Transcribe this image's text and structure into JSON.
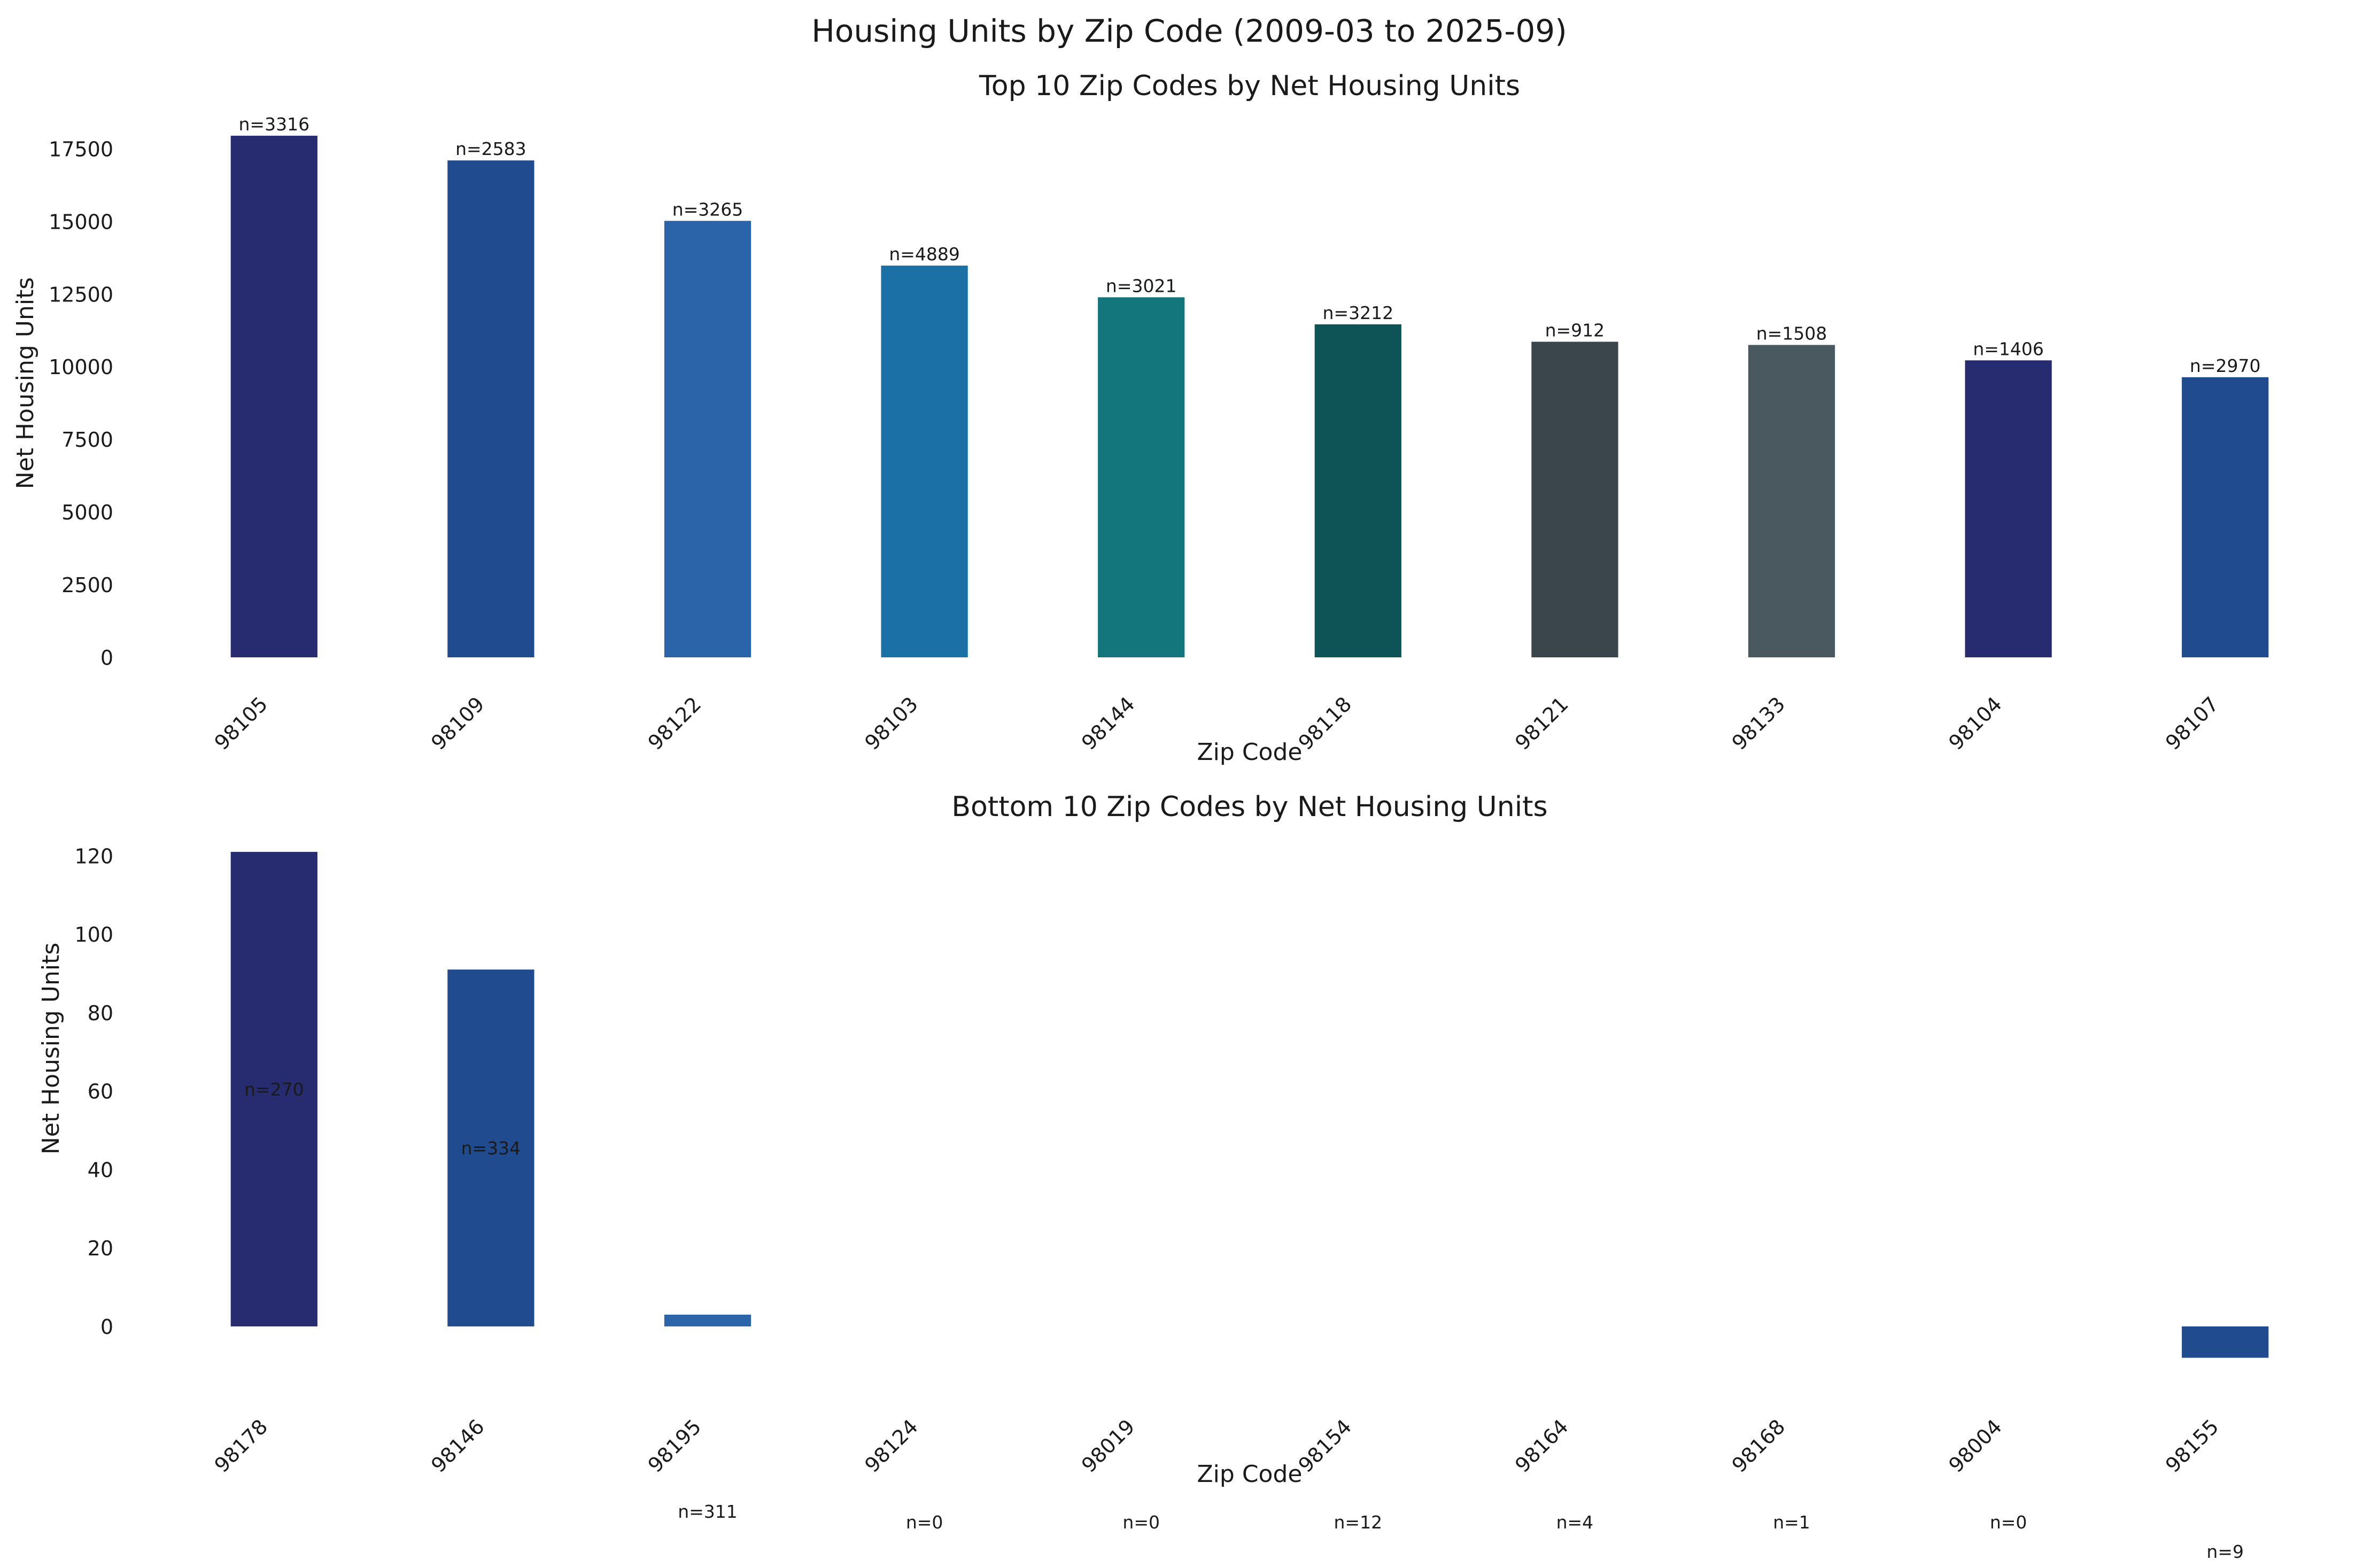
{
  "figure": {
    "title": "Housing Units by Zip Code (2009-03 to 2025-09)"
  },
  "chart_data": [
    {
      "type": "bar",
      "title": "Top 10 Zip Codes by Net Housing Units",
      "xlabel": "Zip Code",
      "ylabel": "Net Housing Units",
      "categories": [
        "98105",
        "98109",
        "98122",
        "98103",
        "98144",
        "98118",
        "98121",
        "98133",
        "98104",
        "98107"
      ],
      "values": [
        17950,
        17100,
        15020,
        13480,
        12390,
        11460,
        10860,
        10750,
        10220,
        9640
      ],
      "counts": [
        "n=3316",
        "n=2583",
        "n=3265",
        "n=4889",
        "n=3021",
        "n=3212",
        "n=912",
        "n=1508",
        "n=1406",
        "n=2970"
      ],
      "colors": [
        "#262c6f",
        "#214b8f",
        "#2b64a8",
        "#1b70a6",
        "#12767c",
        "#0e5457",
        "#3a464c",
        "#4a595f",
        "#262c6f",
        "#214b8f"
      ],
      "yticks": [
        0,
        2500,
        5000,
        7500,
        10000,
        12500,
        15000,
        17500
      ],
      "ylim": [
        0,
        18850
      ],
      "grid": false,
      "legend": "none"
    },
    {
      "type": "bar",
      "title": "Bottom 10 Zip Codes by Net Housing Units",
      "xlabel": "Zip Code",
      "ylabel": "Net Housing Units",
      "categories": [
        "98178",
        "98146",
        "98195",
        "98124",
        "98019",
        "98154",
        "98164",
        "98168",
        "98004",
        "98155"
      ],
      "values": [
        121,
        91,
        3,
        0,
        0,
        0,
        0,
        0,
        0,
        -8
      ],
      "counts": [
        "n=270",
        "n=334",
        "n=311",
        "n=0",
        "n=0",
        "n=12",
        "n=4",
        "n=1",
        "n=0",
        "n=9"
      ],
      "colors": [
        "#262c6f",
        "#214b8f",
        "#2b64a8",
        "#1b70a6",
        "#12767c",
        "#0e5457",
        "#3a464c",
        "#4a595f",
        "#262c6f",
        "#214b8f"
      ],
      "yticks": [
        0,
        20,
        40,
        60,
        80,
        100,
        120
      ],
      "ylim": [
        -12,
        127
      ],
      "grid": false,
      "legend": "none"
    }
  ]
}
